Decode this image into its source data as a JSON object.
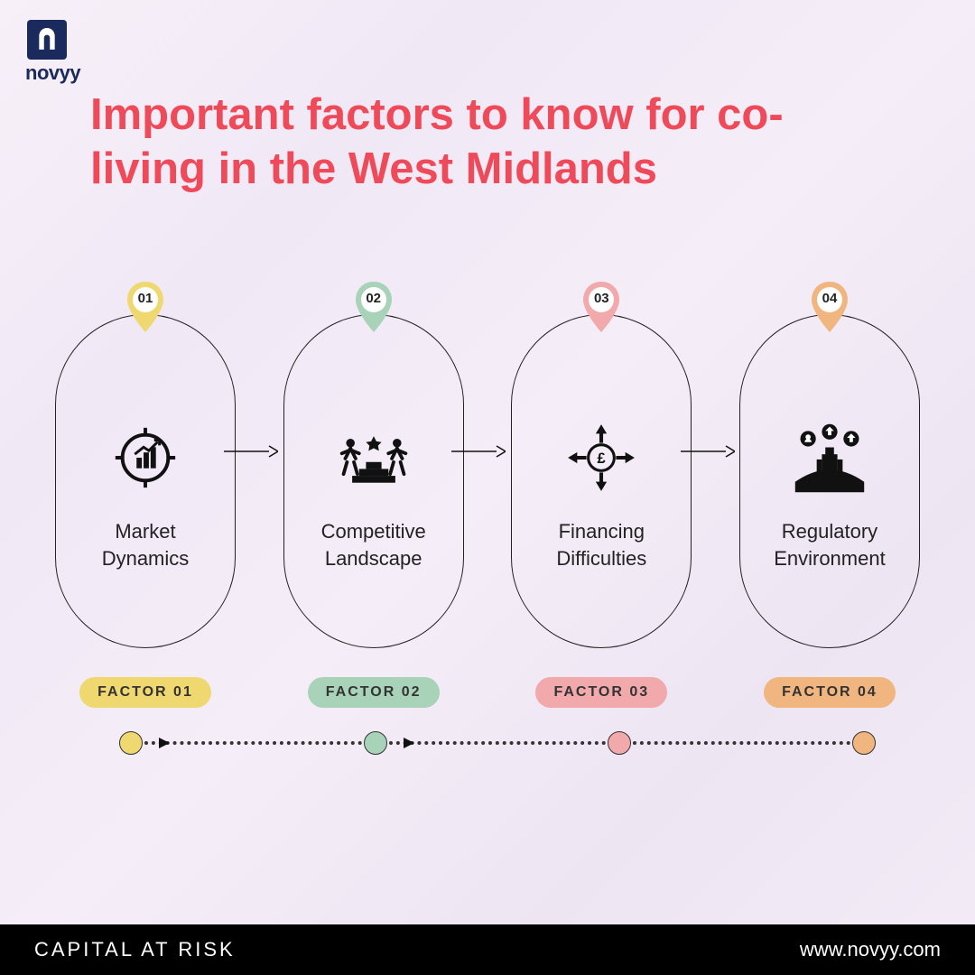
{
  "brand": {
    "name": "novyy",
    "logo_bg": "#1a2a5c"
  },
  "title": "Important factors to know for co-living in the West Midlands",
  "colors": {
    "yellow": "#f0d871",
    "green": "#a9d3b8",
    "pink": "#f1a9ac",
    "orange": "#f1b67f",
    "title": "#ef4a5a"
  },
  "factors": [
    {
      "num": "01",
      "title": "Market Dynamics",
      "badge": "FACTOR 01",
      "color_key": "yellow"
    },
    {
      "num": "02",
      "title": "Competitive Landscape",
      "badge": "FACTOR 02",
      "color_key": "green"
    },
    {
      "num": "03",
      "title": "Financing Difficulties",
      "badge": "FACTOR 03",
      "color_key": "pink"
    },
    {
      "num": "04",
      "title": "Regulatory Environment",
      "badge": "FACTOR 04",
      "color_key": "orange"
    }
  ],
  "footer": {
    "left": "CAPITAL AT RISK",
    "right": "www.novyy.com"
  }
}
